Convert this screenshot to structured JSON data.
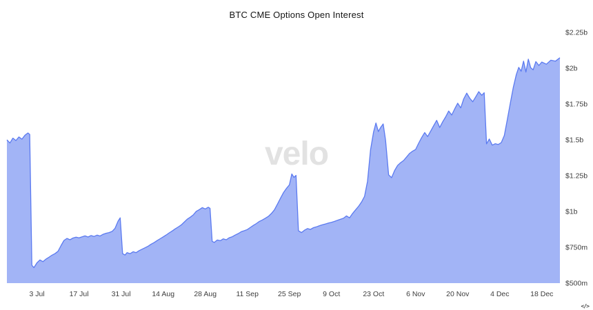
{
  "header": {
    "title": "BTC CME Options Open Interest"
  },
  "watermark": {
    "text": "velo"
  },
  "footer": {
    "embed_glyph": "</>"
  },
  "chart_data": {
    "type": "area",
    "title": "BTC CME Options Open Interest",
    "xlabel": "",
    "ylabel": "",
    "grid": false,
    "legend": "none",
    "x_unit": "days (0 = 23 Jun)",
    "y_unit": "USD millions",
    "x_domain": [
      0,
      184
    ],
    "y_domain_m": [
      500,
      2250
    ],
    "colors": {
      "fill": "#a2b4f6",
      "stroke": "#5b7af0",
      "background": "#ffffff"
    },
    "x_ticks": [
      {
        "day": 10,
        "label": "3 Jul"
      },
      {
        "day": 24,
        "label": "17 Jul"
      },
      {
        "day": 38,
        "label": "31 Jul"
      },
      {
        "day": 52,
        "label": "14 Aug"
      },
      {
        "day": 66,
        "label": "28 Aug"
      },
      {
        "day": 80,
        "label": "11 Sep"
      },
      {
        "day": 94,
        "label": "25 Sep"
      },
      {
        "day": 108,
        "label": "9 Oct"
      },
      {
        "day": 122,
        "label": "23 Oct"
      },
      {
        "day": 136,
        "label": "6 Nov"
      },
      {
        "day": 150,
        "label": "20 Nov"
      },
      {
        "day": 164,
        "label": "4 Dec"
      },
      {
        "day": 178,
        "label": "18 Dec"
      }
    ],
    "y_ticks": [
      {
        "value": 500,
        "label": "$500m"
      },
      {
        "value": 750,
        "label": "$750m"
      },
      {
        "value": 1000,
        "label": "$1b"
      },
      {
        "value": 1250,
        "label": "$1.25b"
      },
      {
        "value": 1500,
        "label": "$1.5b"
      },
      {
        "value": 1750,
        "label": "$1.75b"
      },
      {
        "value": 2000,
        "label": "$2b"
      },
      {
        "value": 2250,
        "label": "$2.25b"
      }
    ],
    "series": [
      {
        "name": "Open Interest",
        "points": [
          [
            0,
            1500
          ],
          [
            1,
            1478
          ],
          [
            2,
            1512
          ],
          [
            3,
            1495
          ],
          [
            4,
            1520
          ],
          [
            5,
            1505
          ],
          [
            6,
            1532
          ],
          [
            7,
            1548
          ],
          [
            7.6,
            1538
          ],
          [
            8.3,
            625
          ],
          [
            9,
            608
          ],
          [
            10,
            642
          ],
          [
            11,
            662
          ],
          [
            12,
            650
          ],
          [
            13,
            668
          ],
          [
            14,
            681
          ],
          [
            15,
            695
          ],
          [
            16,
            706
          ],
          [
            17,
            722
          ],
          [
            18,
            762
          ],
          [
            19,
            798
          ],
          [
            20,
            812
          ],
          [
            21,
            803
          ],
          [
            22,
            815
          ],
          [
            23,
            821
          ],
          [
            24,
            816
          ],
          [
            25,
            823
          ],
          [
            26,
            830
          ],
          [
            27,
            822
          ],
          [
            28,
            832
          ],
          [
            29,
            826
          ],
          [
            30,
            835
          ],
          [
            31,
            829
          ],
          [
            32,
            841
          ],
          [
            33,
            848
          ],
          [
            34,
            853
          ],
          [
            35,
            861
          ],
          [
            36,
            883
          ],
          [
            37,
            933
          ],
          [
            37.7,
            956
          ],
          [
            38.5,
            706
          ],
          [
            39.3,
            696
          ],
          [
            40,
            713
          ],
          [
            41,
            706
          ],
          [
            42,
            719
          ],
          [
            43,
            713
          ],
          [
            44,
            727
          ],
          [
            45,
            737
          ],
          [
            46,
            747
          ],
          [
            47,
            758
          ],
          [
            48,
            772
          ],
          [
            49,
            783
          ],
          [
            50,
            797
          ],
          [
            51,
            810
          ],
          [
            52,
            823
          ],
          [
            53,
            836
          ],
          [
            54,
            851
          ],
          [
            55,
            864
          ],
          [
            56,
            879
          ],
          [
            57,
            892
          ],
          [
            58,
            906
          ],
          [
            59,
            926
          ],
          [
            60,
            946
          ],
          [
            61,
            960
          ],
          [
            62,
            976
          ],
          [
            63,
            1001
          ],
          [
            64,
            1013
          ],
          [
            65,
            1027
          ],
          [
            66,
            1018
          ],
          [
            67,
            1030
          ],
          [
            67.6,
            1022
          ],
          [
            68.3,
            792
          ],
          [
            69,
            784
          ],
          [
            70,
            801
          ],
          [
            71,
            796
          ],
          [
            72,
            809
          ],
          [
            73,
            803
          ],
          [
            74,
            817
          ],
          [
            75,
            824
          ],
          [
            76,
            836
          ],
          [
            77,
            846
          ],
          [
            78,
            859
          ],
          [
            79,
            866
          ],
          [
            80,
            874
          ],
          [
            81,
            889
          ],
          [
            82,
            903
          ],
          [
            83,
            916
          ],
          [
            84,
            931
          ],
          [
            85,
            941
          ],
          [
            86,
            953
          ],
          [
            87,
            966
          ],
          [
            88,
            986
          ],
          [
            89,
            1011
          ],
          [
            90,
            1051
          ],
          [
            91,
            1091
          ],
          [
            92,
            1131
          ],
          [
            93,
            1161
          ],
          [
            94,
            1186
          ],
          [
            94.8,
            1262
          ],
          [
            95.5,
            1238
          ],
          [
            96.2,
            1252
          ],
          [
            97,
            866
          ],
          [
            98,
            853
          ],
          [
            99,
            869
          ],
          [
            100,
            881
          ],
          [
            101,
            875
          ],
          [
            102,
            887
          ],
          [
            103,
            893
          ],
          [
            104,
            901
          ],
          [
            105,
            907
          ],
          [
            106,
            913
          ],
          [
            107,
            919
          ],
          [
            108,
            924
          ],
          [
            109,
            931
          ],
          [
            110,
            939
          ],
          [
            111,
            946
          ],
          [
            112,
            953
          ],
          [
            113,
            969
          ],
          [
            114,
            956
          ],
          [
            115,
            986
          ],
          [
            116,
            1011
          ],
          [
            117,
            1036
          ],
          [
            118,
            1066
          ],
          [
            119,
            1106
          ],
          [
            120,
            1211
          ],
          [
            121,
            1431
          ],
          [
            122,
            1556
          ],
          [
            122.8,
            1618
          ],
          [
            123.6,
            1558
          ],
          [
            124.4,
            1588
          ],
          [
            125.2,
            1611
          ],
          [
            126,
            1496
          ],
          [
            127,
            1256
          ],
          [
            128,
            1236
          ],
          [
            129,
            1286
          ],
          [
            130,
            1321
          ],
          [
            131,
            1341
          ],
          [
            132,
            1356
          ],
          [
            133,
            1381
          ],
          [
            134,
            1406
          ],
          [
            135,
            1421
          ],
          [
            136,
            1433
          ],
          [
            137,
            1476
          ],
          [
            138,
            1516
          ],
          [
            139,
            1551
          ],
          [
            140,
            1523
          ],
          [
            141,
            1561
          ],
          [
            142,
            1599
          ],
          [
            143,
            1636
          ],
          [
            144,
            1586
          ],
          [
            145,
            1626
          ],
          [
            146,
            1661
          ],
          [
            147,
            1701
          ],
          [
            148,
            1673
          ],
          [
            149,
            1716
          ],
          [
            150,
            1756
          ],
          [
            151,
            1723
          ],
          [
            152,
            1786
          ],
          [
            153,
            1826
          ],
          [
            154,
            1791
          ],
          [
            155,
            1766
          ],
          [
            156,
            1801
          ],
          [
            157,
            1836
          ],
          [
            158,
            1811
          ],
          [
            158.8,
            1829
          ],
          [
            159.6,
            1472
          ],
          [
            160.5,
            1506
          ],
          [
            161.5,
            1463
          ],
          [
            162.5,
            1473
          ],
          [
            163.5,
            1468
          ],
          [
            164.5,
            1481
          ],
          [
            165.5,
            1531
          ],
          [
            166.5,
            1641
          ],
          [
            167.5,
            1756
          ],
          [
            168.5,
            1866
          ],
          [
            169.5,
            1956
          ],
          [
            170.3,
            2006
          ],
          [
            171.1,
            1979
          ],
          [
            171.9,
            2049
          ],
          [
            172.7,
            1973
          ],
          [
            173.5,
            2063
          ],
          [
            174.3,
            2003
          ],
          [
            175.1,
            1989
          ],
          [
            176,
            2046
          ],
          [
            177,
            2019
          ],
          [
            178,
            2043
          ],
          [
            179.5,
            2028
          ],
          [
            181,
            2056
          ],
          [
            182.5,
            2049
          ],
          [
            184,
            2073
          ]
        ]
      }
    ]
  }
}
